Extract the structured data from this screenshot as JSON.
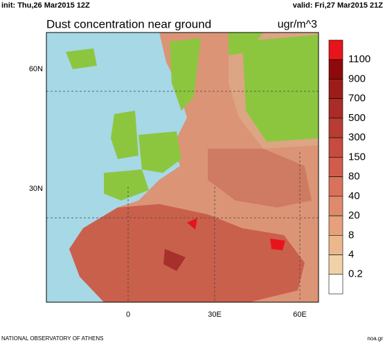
{
  "header": {
    "init": "init: Thu,26 Mar2015 12Z",
    "valid": "valid: Fri,27 Mar2015 21Z"
  },
  "title": "Dust concentration near ground",
  "units": "ugr/m^3",
  "colorbar": {
    "colors": [
      "#e8141c",
      "#8e0a0a",
      "#9c1c1a",
      "#aa2c28",
      "#b93c34",
      "#c64b40",
      "#d05c4c",
      "#d9725c",
      "#e08a6c",
      "#e6a07c",
      "#ebb88e",
      "#f1d2a8",
      "#ffffff"
    ],
    "labels": [
      "1100",
      "900",
      "700",
      "500",
      "300",
      "150",
      "80",
      "40",
      "20",
      "8",
      "4",
      "0.2"
    ]
  },
  "lat_labels": [
    "60N",
    "30N"
  ],
  "lon_labels": [
    "0",
    "30E",
    "60E"
  ],
  "footer": {
    "left": "NATIONAL OBSERVATORY OF ATHENS",
    "right": "noa.gr"
  }
}
